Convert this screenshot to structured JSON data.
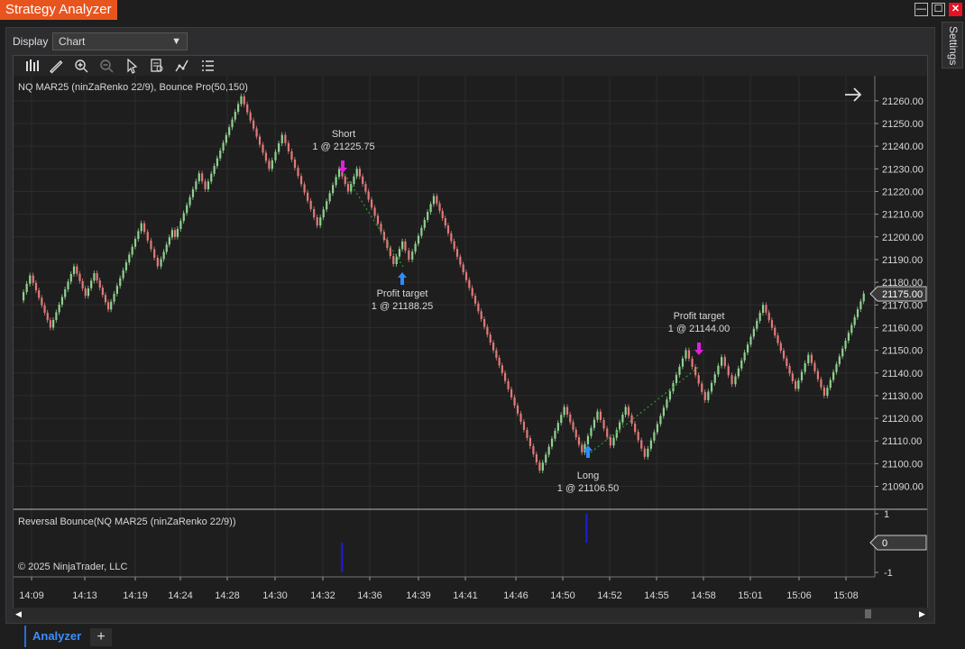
{
  "window": {
    "title": "Strategy Analyzer",
    "minimize_glyph": "—",
    "maximize_glyph": "☐",
    "close_glyph": "✕"
  },
  "display": {
    "label": "Display",
    "selected": "Chart"
  },
  "settings_label": "Settings",
  "toolbar_icons": [
    "bar-type-icon",
    "drawing-tool-icon",
    "zoom-in-icon",
    "zoom-out-icon",
    "pointer-icon",
    "data-box-icon",
    "strategies-icon",
    "properties-icon"
  ],
  "chart": {
    "instrument_label": "NQ MAR25 (ninZaRenko 22/9), Bounce Pro(50,150)",
    "indicator_label": "Reversal Bounce(NQ MAR25 (ninZaRenko 22/9))",
    "copyright": "© 2025 NinjaTrader, LLC",
    "last_price": "21175.00",
    "indicator_value": "0",
    "price_ticks": [
      "21260.00",
      "21250.00",
      "21240.00",
      "21230.00",
      "21220.00",
      "21210.00",
      "21200.00",
      "21190.00",
      "21180.00",
      "21170.00",
      "21160.00",
      "21150.00",
      "21140.00",
      "21130.00",
      "21120.00",
      "21110.00",
      "21100.00",
      "21090.00"
    ],
    "indicator_ticks": [
      "1",
      "0",
      "-1"
    ],
    "time_ticks": [
      "14:09",
      "14:13",
      "14:19",
      "14:24",
      "14:28",
      "14:30",
      "14:32",
      "14:36",
      "14:39",
      "14:41",
      "14:46",
      "14:50",
      "14:52",
      "14:55",
      "14:58",
      "15:01",
      "15:06",
      "15:08"
    ],
    "trades": [
      {
        "title": "Short",
        "detail": "1 @ 21225.75"
      },
      {
        "title": "Profit target",
        "detail": "1 @ 21188.25"
      },
      {
        "title": "Long",
        "detail": "1 @ 21106.50"
      },
      {
        "title": "Profit target",
        "detail": "1 @ 21144.00"
      }
    ],
    "colors": {
      "up": "#8fd18f",
      "down": "#e07a7a",
      "short_marker": "#e020e0",
      "long_marker": "#2f8bff",
      "signal_bar": "#1a1ad0"
    }
  },
  "chart_data": {
    "type": "candlestick",
    "x_label": "",
    "y_label": "",
    "ylim": [
      21082,
      21267
    ],
    "path_points": [
      {
        "t": "14:09",
        "price": 21172
      },
      {
        "t": "14:09",
        "price": 21183
      },
      {
        "t": "14:09",
        "price": 21160
      },
      {
        "t": "14:13",
        "price": 21187
      },
      {
        "t": "14:13",
        "price": 21174
      },
      {
        "t": "14:13",
        "price": 21184
      },
      {
        "t": "14:13",
        "price": 21168
      },
      {
        "t": "14:19",
        "price": 21206
      },
      {
        "t": "14:19",
        "price": 21187
      },
      {
        "t": "14:19",
        "price": 21203
      },
      {
        "t": "14:24",
        "price": 21200
      },
      {
        "t": "14:24",
        "price": 21228
      },
      {
        "t": "14:24",
        "price": 21221
      },
      {
        "t": "14:28",
        "price": 21262
      },
      {
        "t": "14:30",
        "price": 21230
      },
      {
        "t": "14:30",
        "price": 21245
      },
      {
        "t": "14:32",
        "price": 21205
      },
      {
        "t": "14:32",
        "price": 21230
      },
      {
        "t": "14:32",
        "price": 21220
      },
      {
        "t": "14:36",
        "price": 21230
      },
      {
        "t": "14:36",
        "price": 21220
      },
      {
        "t": "14:39",
        "price": 21188
      },
      {
        "t": "14:39",
        "price": 21198
      },
      {
        "t": "14:39",
        "price": 21190
      },
      {
        "t": "14:41",
        "price": 21218
      },
      {
        "t": "14:41",
        "price": 21205
      },
      {
        "t": "14:46",
        "price": 21150
      },
      {
        "t": "14:46",
        "price": 21140
      },
      {
        "t": "14:50",
        "price": 21097
      },
      {
        "t": "14:52",
        "price": 21125
      },
      {
        "t": "14:52",
        "price": 21105
      },
      {
        "t": "14:52",
        "price": 21123
      },
      {
        "t": "14:55",
        "price": 21108
      },
      {
        "t": "14:55",
        "price": 21125
      },
      {
        "t": "14:55",
        "price": 21103
      },
      {
        "t": "14:58",
        "price": 21150
      },
      {
        "t": "14:58",
        "price": 21128
      },
      {
        "t": "14:58",
        "price": 21147
      },
      {
        "t": "15:01",
        "price": 21135
      },
      {
        "t": "15:01",
        "price": 21170
      },
      {
        "t": "15:06",
        "price": 21133
      },
      {
        "t": "15:06",
        "price": 21148
      },
      {
        "t": "15:08",
        "price": 21130
      },
      {
        "t": "15:08",
        "price": 21175
      }
    ],
    "trades": [
      {
        "action": "Short",
        "time": "14:33",
        "price": 21225.75
      },
      {
        "action": "Profit target",
        "time": "14:38",
        "price": 21188.25
      },
      {
        "action": "Long",
        "time": "14:51",
        "price": 21106.5
      },
      {
        "action": "Profit target",
        "time": "14:58",
        "price": 21144.0
      }
    ],
    "indicator_signals": [
      {
        "time": "14:33",
        "value": -1
      },
      {
        "time": "14:51",
        "value": 1
      }
    ]
  }
}
